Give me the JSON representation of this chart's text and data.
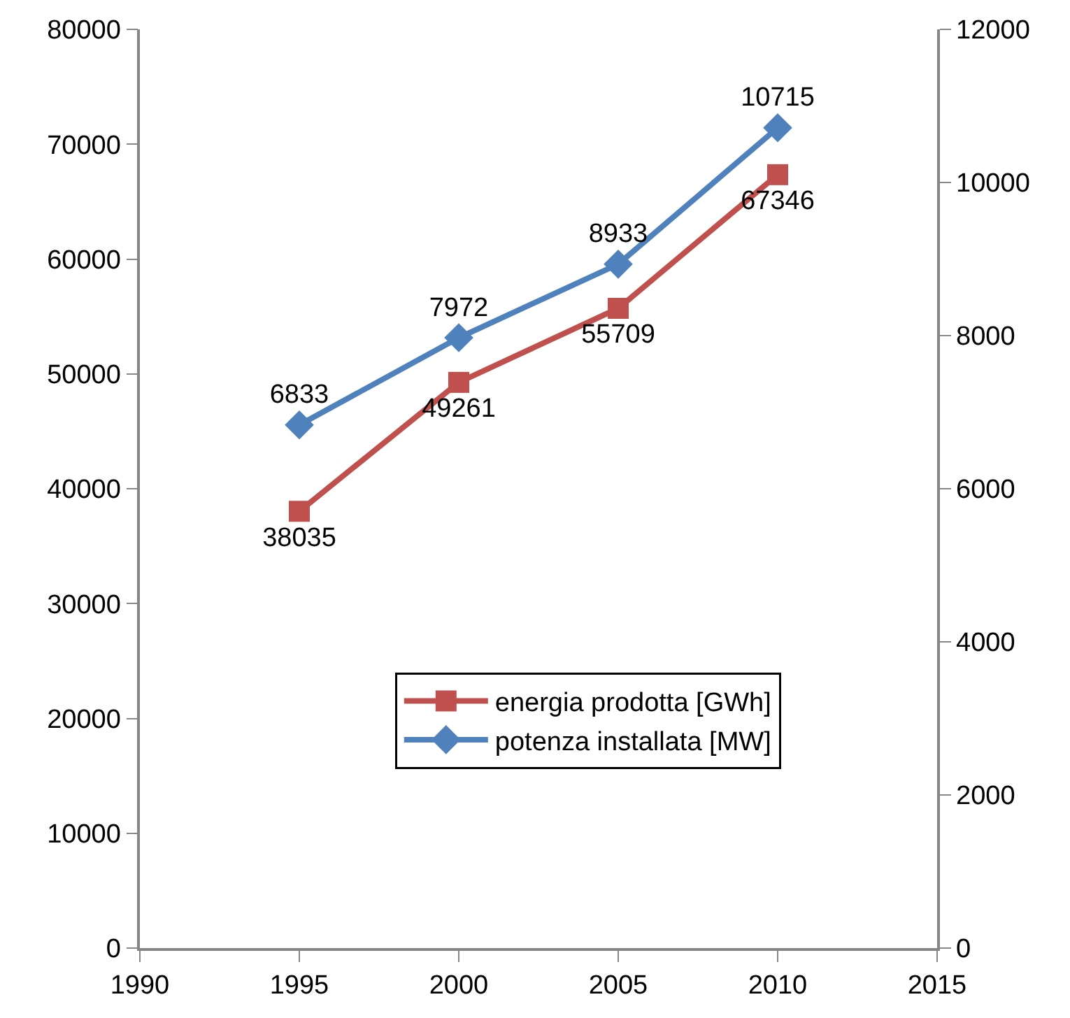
{
  "chart_data": {
    "type": "line",
    "x": [
      1995,
      2000,
      2005,
      2010
    ],
    "series": [
      {
        "name": "energia prodotta [GWh]",
        "color": "#c0504d",
        "marker": "square",
        "values": [
          38035,
          49261,
          55709,
          67346
        ]
      },
      {
        "name": "potenza installata [MW]",
        "color": "#4f81bd",
        "marker": "diamond",
        "axis": "y2",
        "values": [
          6833,
          7972,
          8933,
          10715
        ]
      }
    ],
    "xlim": [
      1990,
      2015
    ],
    "xticks": [
      1990,
      1995,
      2000,
      2005,
      2010,
      2015
    ],
    "ylim": [
      0,
      80000
    ],
    "yticks": [
      0,
      10000,
      20000,
      30000,
      40000,
      50000,
      60000,
      70000,
      80000
    ],
    "y2lim": [
      0,
      12000
    ],
    "y2ticks": [
      0,
      2000,
      4000,
      6000,
      8000,
      10000,
      12000
    ],
    "data_labels": true,
    "legend": "bottom right",
    "line_style": "solid"
  }
}
